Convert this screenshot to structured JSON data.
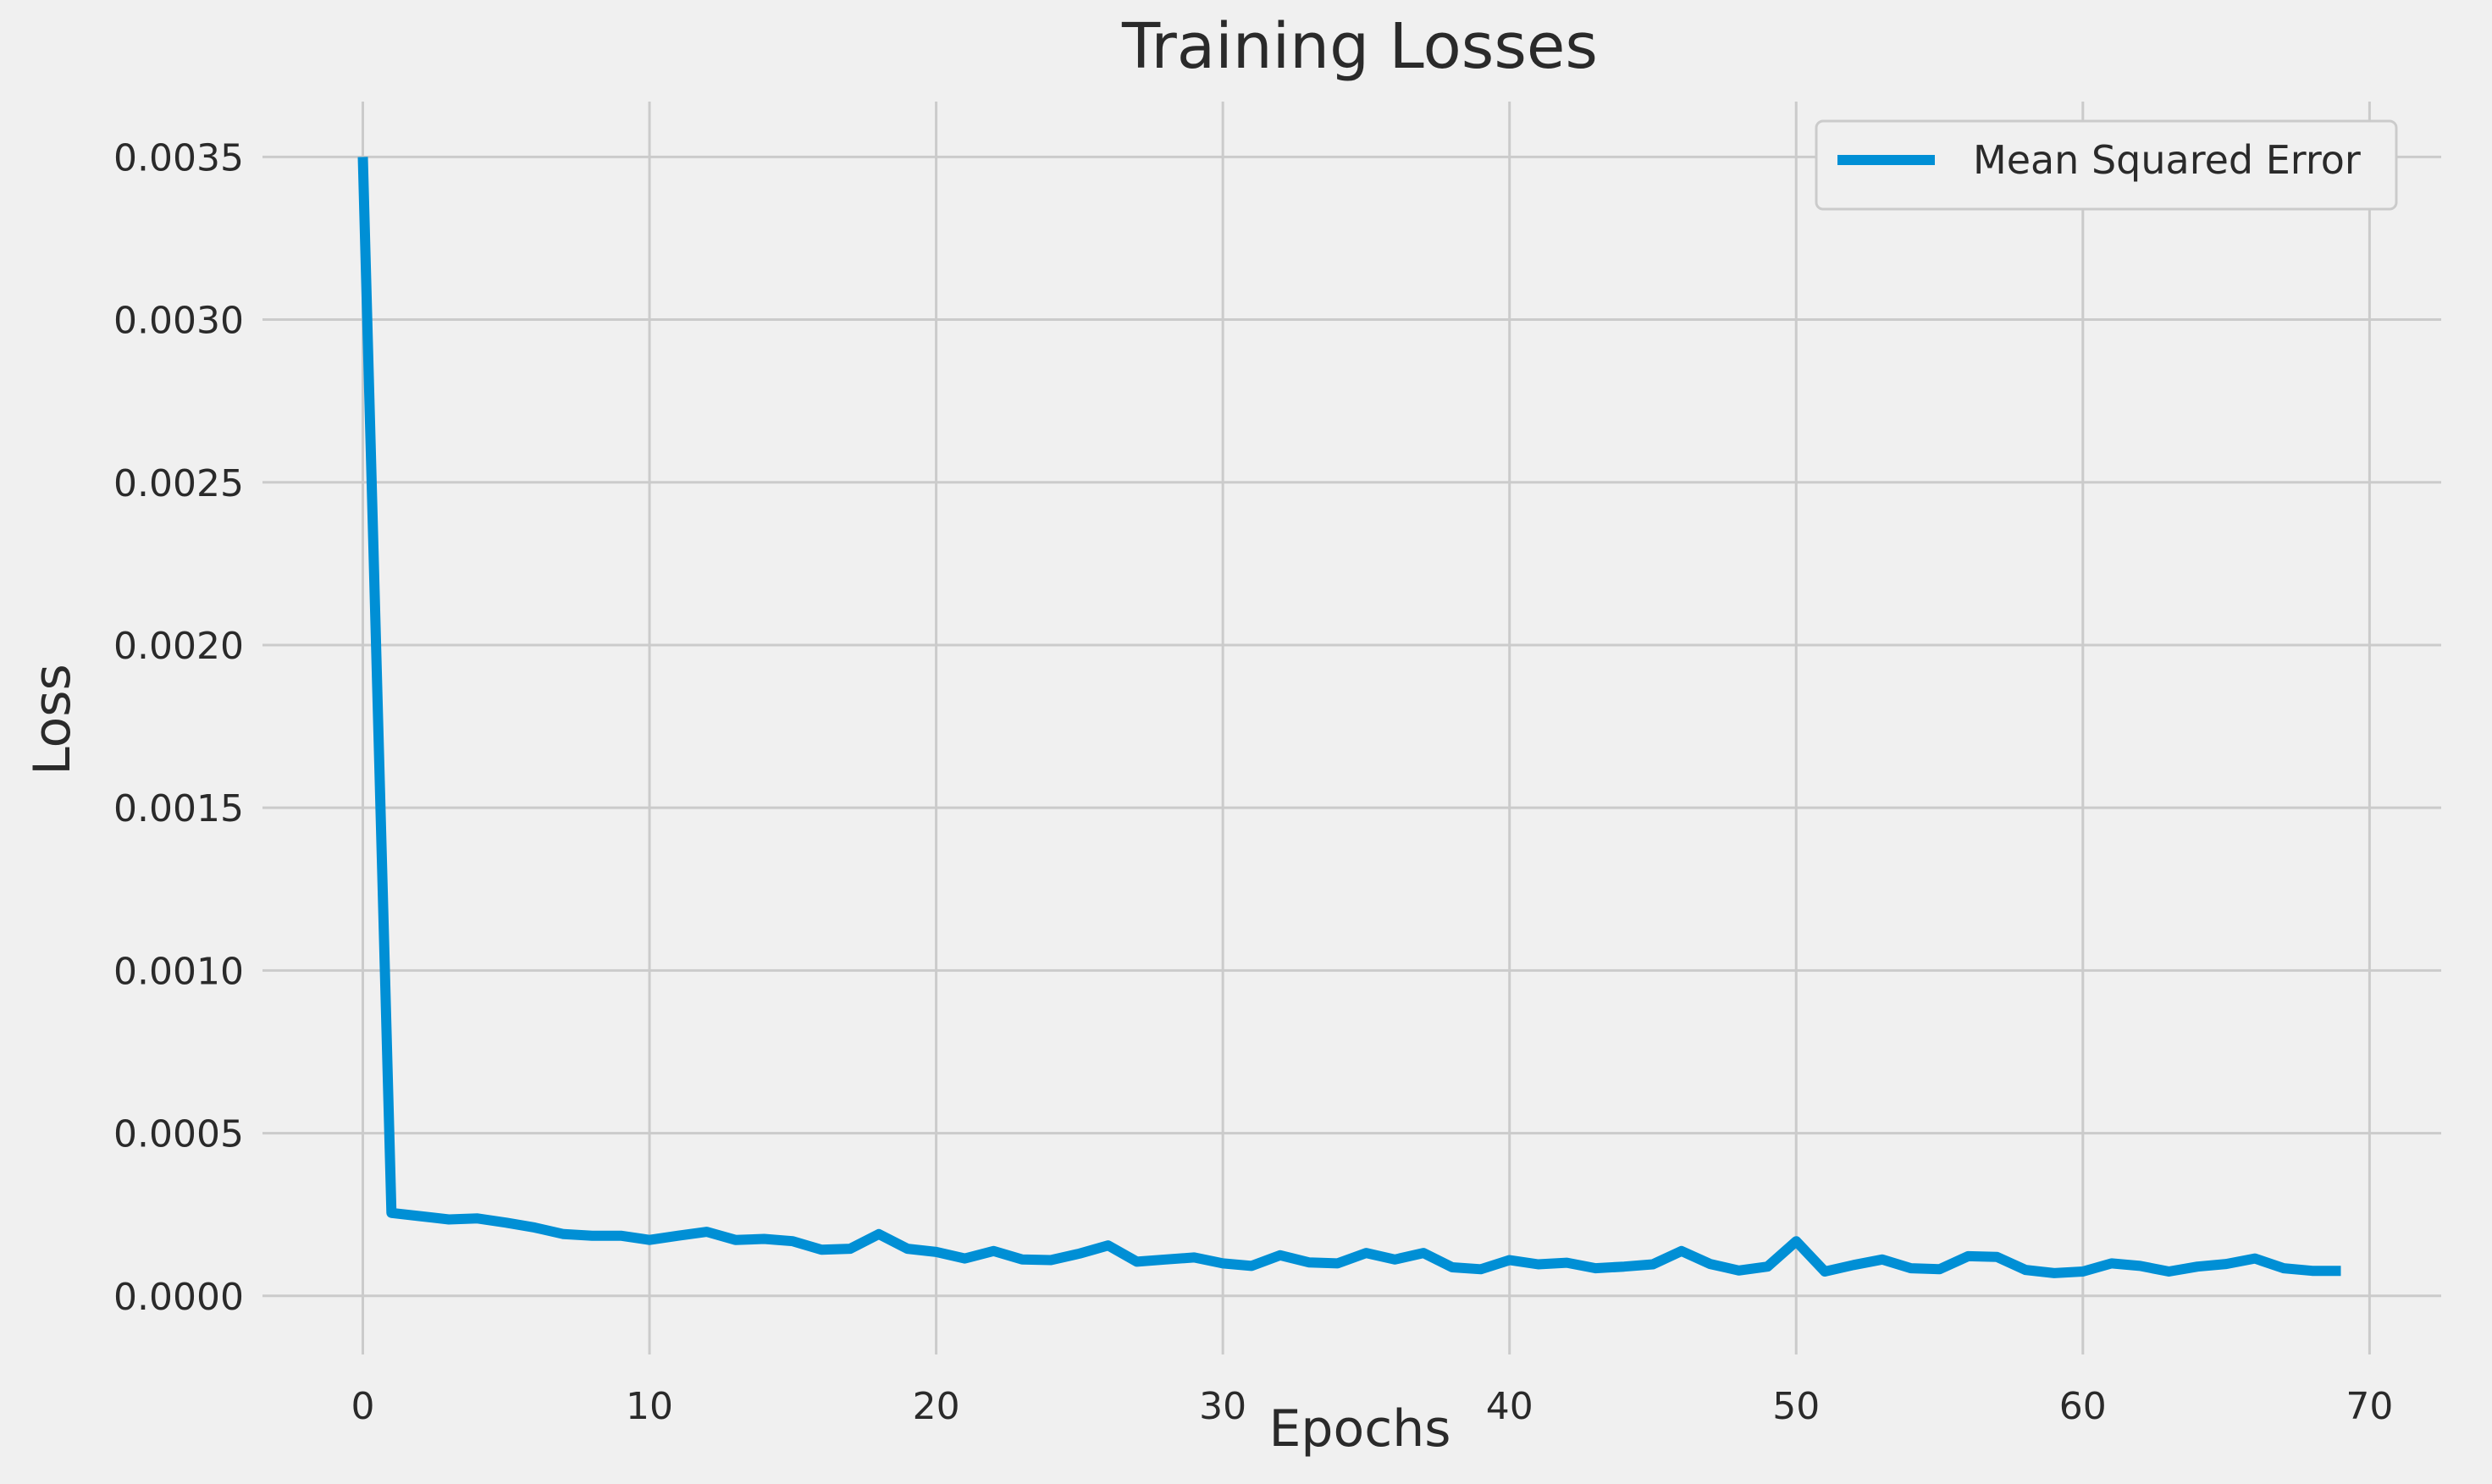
{
  "chart_data": {
    "type": "line",
    "title": "Training Losses",
    "xlabel": "Epochs",
    "ylabel": "Loss",
    "xlim": [
      -3.5,
      72.5
    ],
    "ylim": [
      -0.00018,
      0.00367
    ],
    "xticks": [
      0,
      10,
      20,
      30,
      40,
      50,
      60,
      70
    ],
    "xtick_labels": [
      "0",
      "10",
      "20",
      "30",
      "40",
      "50",
      "60",
      "70"
    ],
    "yticks": [
      0.0,
      0.0005,
      0.001,
      0.0015,
      0.002,
      0.0025,
      0.003,
      0.0035
    ],
    "ytick_labels": [
      "0.0000",
      "0.0005",
      "0.0010",
      "0.0015",
      "0.0020",
      "0.0025",
      "0.0030",
      "0.0035"
    ],
    "grid": true,
    "legend_position": "top-right",
    "series": [
      {
        "name": "Mean Squared Error",
        "color": "#008fd5",
        "x": [
          0,
          1,
          2,
          3,
          4,
          5,
          6,
          7,
          8,
          9,
          10,
          11,
          12,
          13,
          14,
          15,
          16,
          17,
          18,
          19,
          20,
          21,
          22,
          23,
          24,
          25,
          26,
          27,
          28,
          29,
          30,
          31,
          32,
          33,
          34,
          35,
          36,
          37,
          38,
          39,
          40,
          41,
          42,
          43,
          44,
          45,
          46,
          47,
          48,
          49,
          50,
          51,
          52,
          53,
          54,
          55,
          56,
          57,
          58,
          59,
          60,
          61,
          62,
          63,
          64,
          65,
          66,
          67,
          68,
          69
        ],
        "values": [
          0.0035,
          0.000255,
          0.000245,
          0.000235,
          0.000238,
          0.000225,
          0.00021,
          0.00019,
          0.000185,
          0.000185,
          0.000172,
          0.000185,
          0.000197,
          0.000172,
          0.000175,
          0.000168,
          0.000142,
          0.000145,
          0.00019,
          0.000145,
          0.000135,
          0.000115,
          0.000138,
          0.000112,
          0.00011,
          0.00013,
          0.000155,
          0.000105,
          0.000112,
          0.000118,
          0.0001,
          9.2e-05,
          0.000125,
          0.000103,
          0.0001,
          0.000132,
          0.000112,
          0.000132,
          8.8e-05,
          8.2e-05,
          0.00011,
          9.7e-05,
          0.000102,
          8.5e-05,
          9e-05,
          9.7e-05,
          0.000138,
          9.8e-05,
          7.8e-05,
          9e-05,
          0.000168,
          7.5e-05,
          9.5e-05,
          0.000112,
          8.5e-05,
          8.2e-05,
          0.000122,
          0.00012,
          8e-05,
          7e-05,
          7.5e-05,
          0.0001,
          9.2e-05,
          7.5e-05,
          9e-05,
          9.8e-05,
          0.000115,
          8.5e-05,
          7.7e-05,
          7.7e-05
        ]
      }
    ]
  }
}
